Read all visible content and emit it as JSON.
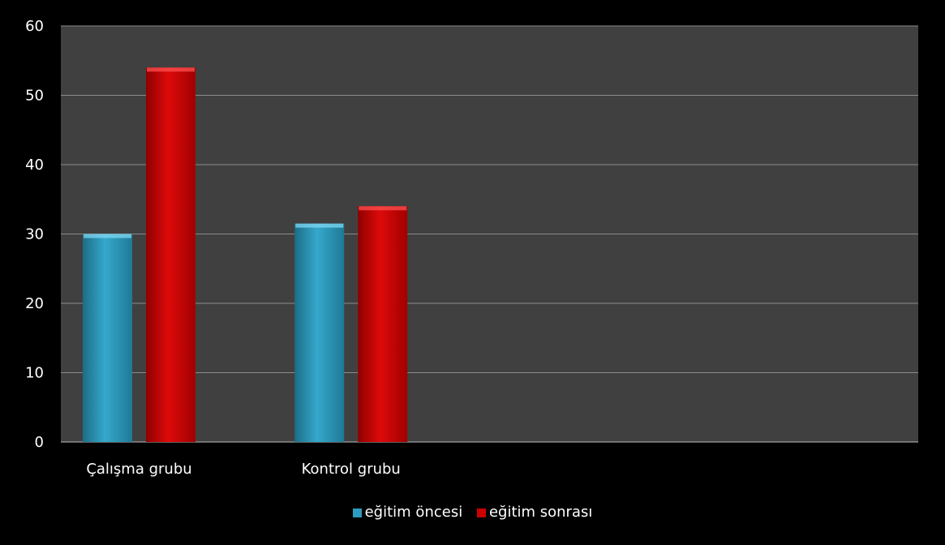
{
  "chart_data": {
    "type": "bar",
    "categories": [
      "Çalışma grubu",
      "Kontrol grubu"
    ],
    "series": [
      {
        "name": "eğitim öncesi",
        "values": [
          30,
          31.5
        ],
        "color": "#2c9bbf"
      },
      {
        "name": "eğitim sonrası",
        "values": [
          54,
          34
        ],
        "color": "#cc0000"
      }
    ],
    "title": "",
    "xlabel": "",
    "ylabel": "",
    "ylim": [
      0,
      60
    ],
    "yticks": [
      "0",
      "10",
      "20",
      "30",
      "40",
      "50",
      "60"
    ],
    "grid": true,
    "legend": "bottom",
    "plot_background": "#404040",
    "background": "#000000"
  }
}
